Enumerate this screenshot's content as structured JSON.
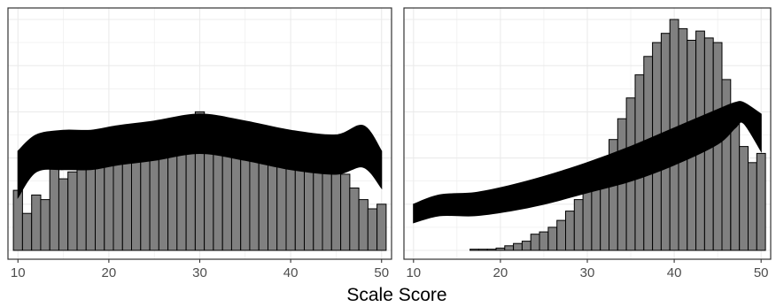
{
  "colors": {
    "bar_fill": "#808080",
    "bar_stroke": "#000000",
    "band": "#000000",
    "grid": "#ebebeb",
    "panel_border": "#333333",
    "background": "#ffffff"
  },
  "xlabel": "Scale Score",
  "chart_data": [
    {
      "type": "bar",
      "panel": "left",
      "title": "",
      "xlabel": "Scale Score",
      "ylabel": "",
      "xlim": [
        9,
        51
      ],
      "ylim": [
        0,
        100
      ],
      "xticks": [
        10,
        20,
        30,
        40,
        50
      ],
      "grid": true,
      "bins": [
        10,
        11,
        12,
        13,
        14,
        15,
        16,
        17,
        18,
        19,
        20,
        21,
        22,
        23,
        24,
        25,
        26,
        27,
        28,
        29,
        30,
        31,
        32,
        33,
        34,
        35,
        36,
        37,
        38,
        39,
        40,
        41,
        42,
        43,
        44,
        45,
        46,
        47,
        48,
        49,
        50
      ],
      "values": [
        26,
        16,
        24,
        22,
        36,
        31,
        34,
        37,
        40,
        41,
        42,
        44,
        47,
        48,
        49,
        51,
        55,
        51,
        53,
        55,
        60,
        57,
        54,
        53,
        55,
        51,
        48,
        47,
        47,
        48,
        49,
        47,
        45,
        44,
        40,
        38,
        33,
        27,
        22,
        18,
        20
      ],
      "band": {
        "x": [
          10,
          12,
          15,
          18,
          21,
          25,
          30,
          35,
          40,
          45,
          48,
          50
        ],
        "upper": [
          43,
          50,
          52,
          52,
          54,
          56,
          59,
          56,
          52,
          50,
          54,
          43
        ],
        "lower": [
          23,
          34,
          35,
          35,
          37,
          39,
          42,
          39,
          35,
          33,
          36,
          27
        ]
      }
    },
    {
      "type": "bar",
      "panel": "right",
      "title": "",
      "xlabel": "Scale Score",
      "ylabel": "",
      "xlim": [
        9,
        51
      ],
      "ylim": [
        0,
        100
      ],
      "xticks": [
        10,
        20,
        30,
        40,
        50
      ],
      "grid": true,
      "bins": [
        10,
        11,
        12,
        13,
        14,
        15,
        16,
        17,
        18,
        19,
        20,
        21,
        22,
        23,
        24,
        25,
        26,
        27,
        28,
        29,
        30,
        31,
        32,
        33,
        34,
        35,
        36,
        37,
        38,
        39,
        40,
        41,
        42,
        43,
        44,
        45,
        46,
        47,
        48,
        49,
        50
      ],
      "values": [
        0,
        0,
        0,
        0,
        0,
        0,
        0,
        0.5,
        0.5,
        0.5,
        1,
        2,
        3,
        4,
        7,
        8,
        10,
        13,
        17,
        22,
        30,
        34,
        40,
        48,
        57,
        66,
        76,
        84,
        90,
        94,
        100,
        96,
        91,
        95,
        92,
        90,
        74,
        60,
        45,
        38,
        42
      ],
      "band": {
        "x": [
          10,
          13,
          17,
          21,
          25,
          30,
          35,
          40,
          45,
          47,
          48,
          50
        ],
        "upper": [
          20,
          24,
          25,
          28,
          32,
          38,
          45,
          53,
          61,
          64,
          64,
          59
        ],
        "lower": [
          12,
          15,
          15,
          17,
          20,
          25,
          30,
          37,
          46,
          53,
          55,
          43
        ]
      }
    }
  ]
}
